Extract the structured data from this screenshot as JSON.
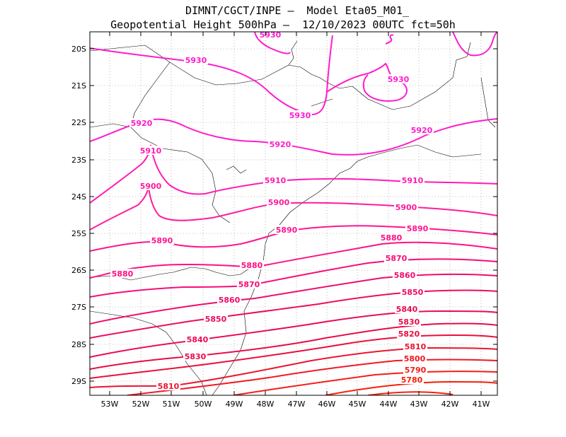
{
  "header": {
    "line1": "DIMNT/CGCT/INPE —  Model Eta05_M01_",
    "line2": "Geopotential Height 500hPa —  12/10/2023 00UTC fct=50h"
  },
  "axes": {
    "lat_labels": [
      "20S",
      "21S",
      "22S",
      "23S",
      "24S",
      "25S",
      "26S",
      "27S",
      "28S",
      "29S"
    ],
    "lon_labels": [
      "53W",
      "52W",
      "51W",
      "50W",
      "49W",
      "48W",
      "47W",
      "46W",
      "45W",
      "44W",
      "43W",
      "42W",
      "41W"
    ]
  },
  "contours": [
    {
      "label": "5930",
      "color": "#ff1ccc"
    },
    {
      "label": "5920",
      "color": "#ff1ccc"
    },
    {
      "label": "5910",
      "color": "#ff1cb4"
    },
    {
      "label": "5900",
      "color": "#ff1c9c"
    },
    {
      "label": "5890",
      "color": "#ff1490"
    },
    {
      "label": "5880",
      "color": "#ff1084"
    },
    {
      "label": "5870",
      "color": "#f80c78"
    },
    {
      "label": "5860",
      "color": "#f00c6c"
    },
    {
      "label": "5850",
      "color": "#ec0c60"
    },
    {
      "label": "5840",
      "color": "#e80c54"
    },
    {
      "label": "5830",
      "color": "#e80c48"
    },
    {
      "label": "5820",
      "color": "#e8103c"
    },
    {
      "label": "5810",
      "color": "#ec1430"
    },
    {
      "label": "5800",
      "color": "#f01824"
    },
    {
      "label": "5790",
      "color": "#f41c18"
    },
    {
      "label": "5780",
      "color": "#f8200c"
    }
  ]
}
